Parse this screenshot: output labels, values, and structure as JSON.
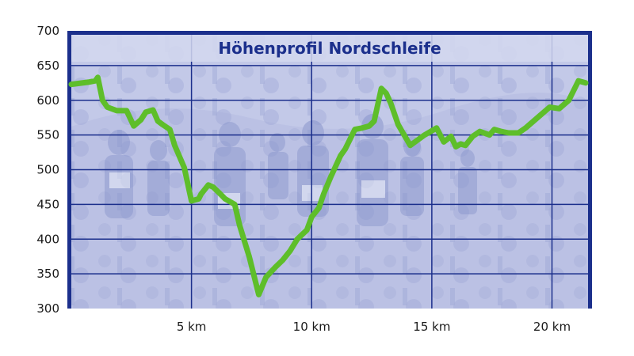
{
  "chart_data": {
    "type": "line",
    "title": "Höhenprofil Nordschleife",
    "xlabel": "",
    "ylabel": "",
    "xlim": [
      0,
      21.5
    ],
    "ylim": [
      300,
      700
    ],
    "x_ticks": [
      5,
      10,
      15,
      20
    ],
    "x_tick_labels": [
      "5 km",
      "10 km",
      "15 km",
      "20 km"
    ],
    "y_ticks": [
      300,
      350,
      400,
      450,
      500,
      550,
      600,
      650,
      700
    ],
    "y_tick_labels": [
      "300",
      "350",
      "400",
      "450",
      "500",
      "550",
      "600",
      "650",
      "700"
    ],
    "grid": true,
    "legend": "none",
    "series": [
      {
        "x": [
          0,
          0.7,
          1.0,
          1.1,
          1.3,
          1.5,
          1.9,
          2.3,
          2.6,
          2.9,
          3.1,
          3.4,
          3.6,
          3.8,
          4.1,
          4.3,
          4.7,
          5.0,
          5.3,
          5.4,
          5.7,
          5.9,
          6.2,
          6.4,
          6.8,
          7.0,
          7.4,
          7.8,
          8.1,
          8.5,
          8.8,
          9.1,
          9.4,
          9.8,
          10.0,
          10.3,
          10.5,
          10.8,
          11.2,
          11.4,
          11.8,
          12.1,
          12.4,
          12.6,
          12.9,
          13.1,
          13.3,
          13.6,
          14.1,
          14.7,
          15.2,
          15.5,
          15.8,
          16.0,
          16.2,
          16.4,
          16.7,
          17.0,
          17.4,
          17.6,
          17.9,
          18.2,
          18.6,
          18.9,
          19.4,
          19.9,
          20.3,
          20.7,
          21.1,
          21.4
        ],
        "y": [
          623,
          626,
          628,
          633,
          600,
          590,
          585,
          585,
          563,
          572,
          583,
          586,
          570,
          565,
          558,
          535,
          503,
          455,
          458,
          465,
          478,
          475,
          465,
          458,
          450,
          420,
          375,
          320,
          345,
          360,
          370,
          383,
          400,
          413,
          432,
          445,
          465,
          490,
          520,
          530,
          558,
          560,
          563,
          570,
          617,
          610,
          595,
          565,
          535,
          550,
          560,
          540,
          548,
          533,
          537,
          535,
          548,
          555,
          550,
          558,
          555,
          553,
          553,
          560,
          575,
          590,
          588,
          600,
          628,
          625
        ],
        "color": "#5ebe2a"
      }
    ]
  }
}
